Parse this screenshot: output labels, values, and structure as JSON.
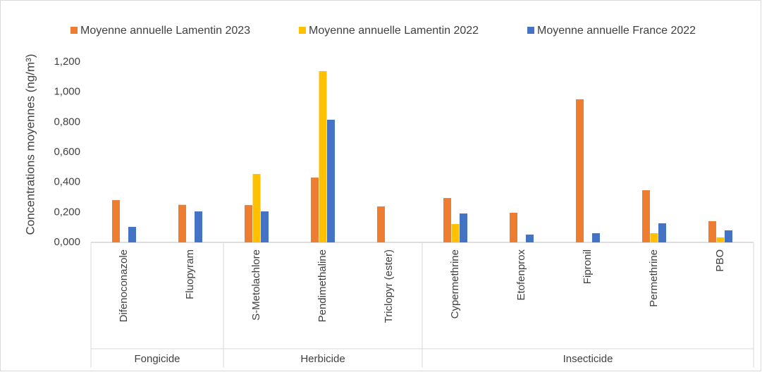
{
  "chart_data": {
    "type": "bar",
    "y_label": "Concentrations moyennes (ng/m³)",
    "categories": [
      "Difenoconazole",
      "Fluopyram",
      "S-Metolachlore",
      "Pendimethaline",
      "Triclopyr (ester)",
      "Cypermethrine",
      "Etofenprox",
      "Fipronil",
      "Permethrine",
      "PBO"
    ],
    "groups": [
      {
        "name": "Fongicide",
        "size": 2
      },
      {
        "name": "Herbicide",
        "size": 3
      },
      {
        "name": "Insecticide",
        "size": 5
      }
    ],
    "series": [
      {
        "name": "Moyenne annuelle Lamentin 2023",
        "color": "#ed7d31",
        "values": [
          0.281,
          0.25,
          0.248,
          0.431,
          0.239,
          0.295,
          0.197,
          0.952,
          0.347,
          0.141
        ]
      },
      {
        "name": "Moyenne annuelle Lamentin 2022",
        "color": "#ffc000",
        "values": [
          null,
          null,
          0.455,
          1.139,
          null,
          0.122,
          null,
          null,
          0.061,
          0.033
        ]
      },
      {
        "name": "Moyenne annuelle France 2022",
        "color": "#4472c4",
        "values": [
          0.103,
          0.206,
          0.206,
          0.816,
          null,
          0.192,
          0.052,
          0.061,
          0.127,
          0.08
        ]
      }
    ],
    "ylim": [
      0,
      1.2
    ],
    "yticks": [
      {
        "value": 0,
        "label": "0,000"
      },
      {
        "value": 0.2,
        "label": "0,200"
      },
      {
        "value": 0.4,
        "label": "0,400"
      },
      {
        "value": 0.6,
        "label": "0,600"
      },
      {
        "value": 0.8,
        "label": "0,800"
      },
      {
        "value": 1.0,
        "label": "1,000"
      },
      {
        "value": 1.2,
        "label": "1,200"
      }
    ],
    "grid": false,
    "legend": "top"
  }
}
